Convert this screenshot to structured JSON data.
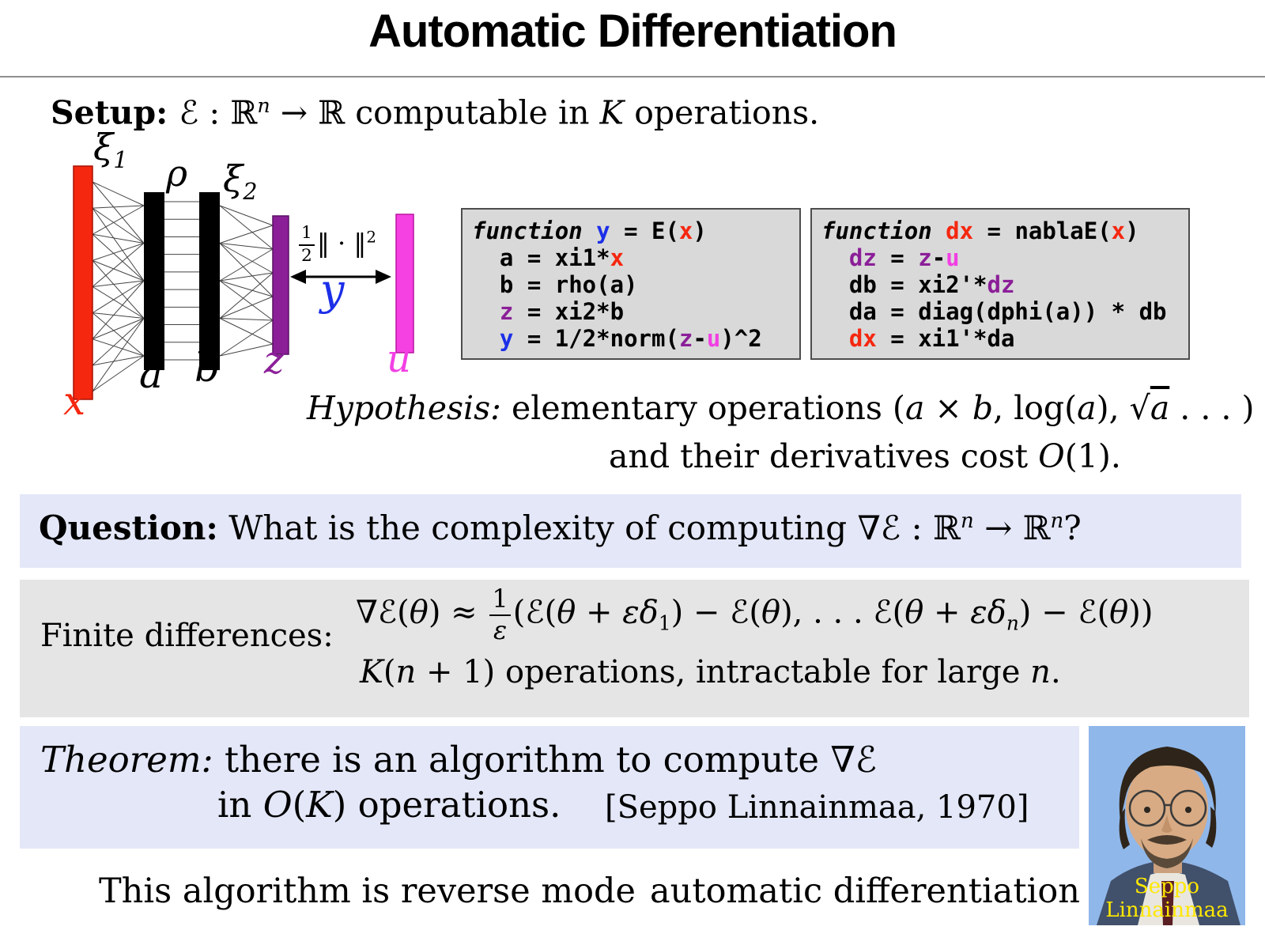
{
  "title": "Automatic Differentiation",
  "setup_tokens": [
    {
      "t": "Setup: ",
      "c": "bf"
    },
    {
      "t": "ℰ : ℝ"
    },
    {
      "t": "n",
      "sup": true,
      "c": "it"
    },
    {
      "t": " → ℝ computable in "
    },
    {
      "t": "K",
      "c": "it"
    },
    {
      "t": " operations."
    }
  ],
  "diagram": {
    "label_xi1": [
      {
        "t": "ξ",
        "c": "it"
      },
      {
        "t": "1",
        "sub": true
      }
    ],
    "label_rho": [
      {
        "t": "ρ",
        "c": "it"
      }
    ],
    "label_xi2": [
      {
        "t": "ξ",
        "c": "it"
      },
      {
        "t": "2",
        "sub": true
      }
    ],
    "label_loss": [
      {
        "frac": [
          "1",
          "2"
        ]
      },
      {
        "t": "‖ · ‖"
      },
      {
        "t": "2",
        "sup": true
      }
    ],
    "label_x": "x",
    "label_a": "a",
    "label_b": "b",
    "label_z": "z",
    "label_u": "u",
    "label_y": "y"
  },
  "code1": {
    "lines": [
      [
        {
          "t": "function ",
          "c": "it"
        },
        {
          "t": "y",
          "c": "c-blue"
        },
        {
          "t": " = E("
        },
        {
          "t": "x",
          "c": "c-red"
        },
        {
          "t": ")"
        }
      ],
      [
        {
          "t": "  a = xi1*"
        },
        {
          "t": "x",
          "c": "c-red"
        }
      ],
      [
        {
          "t": "  b = rho(a)"
        }
      ],
      [
        {
          "t": "  "
        },
        {
          "t": "z",
          "c": "c-purple"
        },
        {
          "t": " = xi2*b"
        }
      ],
      [
        {
          "t": "  "
        },
        {
          "t": "y",
          "c": "c-blue"
        },
        {
          "t": " = 1/2*norm("
        },
        {
          "t": "z",
          "c": "c-purple"
        },
        {
          "t": "-"
        },
        {
          "t": "u",
          "c": "c-magenta"
        },
        {
          "t": ")^2"
        }
      ]
    ]
  },
  "code2": {
    "lines": [
      [
        {
          "t": "function ",
          "c": "it"
        },
        {
          "t": "dx",
          "c": "c-red"
        },
        {
          "t": " = nablaE("
        },
        {
          "t": "x",
          "c": "c-red"
        },
        {
          "t": ")"
        }
      ],
      [
        {
          "t": "  "
        },
        {
          "t": "dz",
          "c": "c-purple"
        },
        {
          "t": " = "
        },
        {
          "t": "z",
          "c": "c-purple"
        },
        {
          "t": "-"
        },
        {
          "t": "u",
          "c": "c-magenta"
        }
      ],
      [
        {
          "t": "  db = xi2'*"
        },
        {
          "t": "dz",
          "c": "c-purple"
        }
      ],
      [
        {
          "t": "  da = diag(dphi(a)) * db"
        }
      ],
      [
        {
          "t": "  "
        },
        {
          "t": "dx",
          "c": "c-red"
        },
        {
          "t": " = xi1'*da"
        }
      ]
    ]
  },
  "hypothesis": {
    "line1": [
      {
        "t": "Hypothesis: ",
        "c": "it"
      },
      {
        "t": "elementary operations ("
      },
      {
        "t": "a",
        "c": "it"
      },
      {
        "t": " × "
      },
      {
        "t": "b",
        "c": "it"
      },
      {
        "t": ", log("
      },
      {
        "t": "a",
        "c": "it"
      },
      {
        "t": "), √"
      },
      {
        "t": "a",
        "c": "it ol"
      },
      {
        "t": " . . . )"
      }
    ],
    "line2": [
      {
        "t": "and their derivatives cost "
      },
      {
        "t": "O",
        "c": "it"
      },
      {
        "t": "(1)."
      }
    ]
  },
  "question": {
    "tokens": [
      {
        "t": "Question:",
        "c": "bf"
      },
      {
        "t": " What is the complexity of computing "
      },
      {
        "t": "∇ℰ : ℝ"
      },
      {
        "t": "n",
        "sup": true,
        "c": "it"
      },
      {
        "t": " → ℝ"
      },
      {
        "t": "n",
        "sup": true,
        "c": "it"
      },
      {
        "t": "?"
      }
    ]
  },
  "finite_differences": {
    "label": [
      {
        "t": "Finite differences:"
      }
    ],
    "formula": [
      {
        "t": "∇ℰ("
      },
      {
        "t": "θ",
        "c": "it"
      },
      {
        "t": ") ≈ "
      },
      {
        "frac": [
          "1",
          "ε"
        ]
      },
      {
        "t": "(ℰ("
      },
      {
        "t": "θ",
        "c": "it"
      },
      {
        "t": " + "
      },
      {
        "t": "εδ",
        "c": "it"
      },
      {
        "t": "1",
        "sub": true
      },
      {
        "t": ") − ℰ("
      },
      {
        "t": "θ",
        "c": "it"
      },
      {
        "t": "), . . . ℰ("
      },
      {
        "t": "θ",
        "c": "it"
      },
      {
        "t": " + "
      },
      {
        "t": "εδ",
        "c": "it"
      },
      {
        "t": "n",
        "sub": true,
        "c": "it"
      },
      {
        "t": ") − ℰ("
      },
      {
        "t": "θ",
        "c": "it"
      },
      {
        "t": "))"
      }
    ],
    "cost_line": [
      {
        "t": "K",
        "c": "it"
      },
      {
        "t": "("
      },
      {
        "t": "n",
        "c": "it"
      },
      {
        "t": " + 1) operations, intractable for large "
      },
      {
        "t": "n",
        "c": "it"
      },
      {
        "t": "."
      }
    ]
  },
  "theorem": {
    "line1": [
      {
        "t": "Theorem: ",
        "c": "it"
      },
      {
        "t": "there is an algorithm to compute "
      },
      {
        "t": "∇ℰ"
      }
    ],
    "line2": [
      {
        "t": "in "
      },
      {
        "t": "O",
        "c": "it"
      },
      {
        "t": "("
      },
      {
        "t": "K",
        "c": "it"
      },
      {
        "t": ") operations."
      }
    ],
    "citation": [
      {
        "t": "[Seppo Linnainmaa, 1970]"
      }
    ]
  },
  "bottom": {
    "tokens": [
      {
        "t": "This algorithm is reverse mode"
      },
      {
        "t": "automatic differentiation",
        "c": "gap"
      }
    ]
  },
  "photo": {
    "caption_line1": "Seppo",
    "caption_line2": "Linnainmaa"
  },
  "colors": {
    "layer_x_red": "#f5270f",
    "layer_z_purple": "#8b1f98",
    "layer_u_magenta": "#f540e2",
    "y_blue": "#1b2fe8",
    "question_theorem_box": "#e3e7f7",
    "finite_diff_box": "#e5e5e5",
    "code_box_bg": "#d9d9d9",
    "caption_yellow": "#ffe800"
  }
}
